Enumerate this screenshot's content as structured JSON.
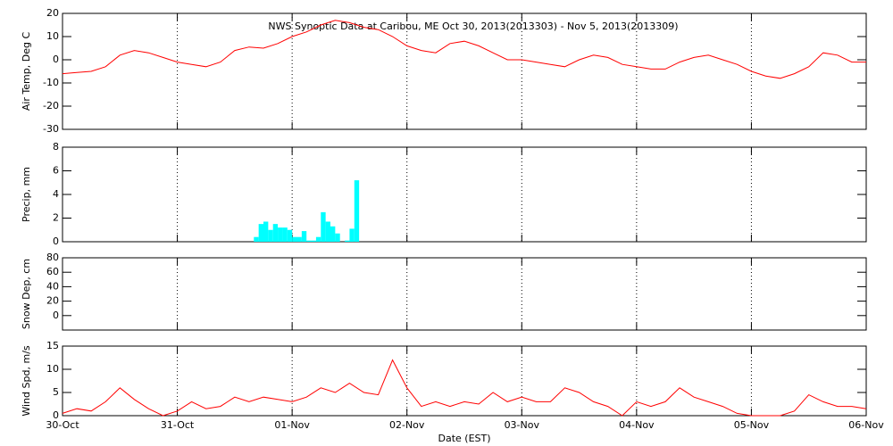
{
  "chart_data": [
    {
      "type": "line",
      "title": "NWS Synoptic Data at Caribou, ME   Oct 30, 2013(2013303) - Nov  5, 2013(2013309)",
      "ylabel": "Air Temp, Deg C",
      "xlim": [
        0,
        168
      ],
      "xticks": [
        0,
        24,
        48,
        72,
        96,
        120,
        144,
        168
      ],
      "xgrid": true,
      "ylim": [
        -30,
        20
      ],
      "yticks": [
        -30,
        -20,
        -10,
        0,
        10,
        20
      ],
      "x": [
        0,
        3,
        6,
        9,
        12,
        15,
        18,
        21,
        24,
        27,
        30,
        33,
        36,
        39,
        42,
        45,
        48,
        51,
        54,
        57,
        60,
        63,
        66,
        69,
        72,
        75,
        78,
        81,
        84,
        87,
        90,
        93,
        96,
        99,
        102,
        105,
        108,
        111,
        114,
        117,
        120,
        123,
        126,
        129,
        132,
        135,
        138,
        141,
        144,
        147,
        150,
        153,
        156,
        159,
        162,
        165,
        168
      ],
      "series": [
        {
          "name": "Air Temp",
          "color": "#ff0000",
          "values": [
            -6,
            -5.5,
            -5,
            -3,
            2,
            4,
            3,
            1,
            -1,
            -2,
            -3,
            -1,
            4,
            5.5,
            5,
            7,
            10,
            12,
            15,
            17,
            16,
            14,
            13,
            10,
            6,
            4,
            3,
            7,
            8,
            6,
            3,
            0,
            0,
            -1,
            -2,
            -3,
            0,
            2,
            1,
            -2,
            -3,
            -4,
            -4,
            -1,
            1,
            2,
            0,
            -2,
            -5,
            -7,
            -8,
            -6,
            -3,
            3,
            2,
            -1,
            -1
          ]
        }
      ]
    },
    {
      "type": "bar",
      "ylabel": "Precip, mm",
      "xlim": [
        0,
        168
      ],
      "xticks": [
        0,
        24,
        48,
        72,
        96,
        120,
        144,
        168
      ],
      "xgrid": true,
      "ylim": [
        0,
        8
      ],
      "yticks": [
        0,
        2,
        4,
        6,
        8
      ],
      "x": [
        40,
        41,
        42,
        43,
        44,
        45,
        46,
        47,
        48,
        49,
        50,
        51,
        52,
        53,
        54,
        55,
        56,
        57,
        58,
        59,
        60,
        61
      ],
      "series": [
        {
          "name": "Precip",
          "color": "#00ffff",
          "values": [
            0.4,
            1.5,
            1.7,
            1.0,
            1.5,
            1.2,
            1.2,
            1.0,
            0.4,
            0.4,
            0.9,
            0.1,
            0.1,
            0.4,
            2.5,
            1.7,
            1.3,
            0.7,
            0,
            0.1,
            1.1,
            5.2
          ]
        }
      ]
    },
    {
      "type": "line",
      "ylabel": "Snow Dep, cm",
      "xlim": [
        0,
        168
      ],
      "xticks": [
        0,
        24,
        48,
        72,
        96,
        120,
        144,
        168
      ],
      "xgrid": true,
      "ylim": [
        -20,
        80
      ],
      "yticks": [
        0,
        20,
        40,
        60,
        80
      ],
      "x": [],
      "series": []
    },
    {
      "type": "line",
      "ylabel": "Wind Spd, m/s",
      "xlabel": "Date (EST)",
      "xlim": [
        0,
        168
      ],
      "xticks": [
        {
          "value": 0,
          "label": "30-Oct"
        },
        {
          "value": 24,
          "label": "31-Oct"
        },
        {
          "value": 48,
          "label": "01-Nov"
        },
        {
          "value": 72,
          "label": "02-Nov"
        },
        {
          "value": 96,
          "label": "03-Nov"
        },
        {
          "value": 120,
          "label": "04-Nov"
        },
        {
          "value": 144,
          "label": "05-Nov"
        },
        {
          "value": 168,
          "label": "06-Nov"
        }
      ],
      "xgrid": true,
      "ylim": [
        0,
        15
      ],
      "yticks": [
        0,
        5,
        10,
        15
      ],
      "x": [
        0,
        3,
        6,
        9,
        12,
        15,
        18,
        21,
        24,
        27,
        30,
        33,
        36,
        39,
        42,
        45,
        48,
        51,
        54,
        57,
        60,
        63,
        66,
        69,
        72,
        75,
        78,
        81,
        84,
        87,
        90,
        93,
        96,
        99,
        102,
        105,
        108,
        111,
        114,
        117,
        120,
        123,
        126,
        129,
        132,
        135,
        138,
        141,
        144,
        147,
        150,
        153,
        156,
        159,
        162,
        165,
        168
      ],
      "series": [
        {
          "name": "Wind Spd",
          "color": "#ff0000",
          "values": [
            0.5,
            1.5,
            1,
            3,
            6,
            3.5,
            1.5,
            0,
            1,
            3,
            1.5,
            2,
            4,
            3,
            4,
            3.5,
            3,
            4,
            6,
            5,
            7,
            5,
            4.5,
            12,
            6,
            2,
            3,
            2,
            3,
            2.5,
            5,
            3,
            4,
            3,
            3,
            6,
            5,
            3,
            2,
            0,
            3,
            2,
            3,
            6,
            4,
            3,
            2,
            0.5,
            0,
            0,
            0,
            1,
            4.5,
            3,
            2,
            2,
            1.5
          ]
        }
      ]
    }
  ]
}
